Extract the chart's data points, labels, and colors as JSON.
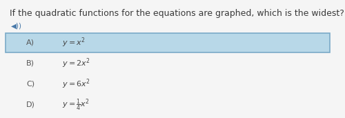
{
  "title": "If the quadratic functions for the equations are graphed, which is the widest?",
  "title_fontsize": 9.0,
  "title_color": "#3a3a3a",
  "speaker_color": "#4a7aaa",
  "options": [
    {
      "label": "A)",
      "eq_latex": "$y = x^2$",
      "selected": true
    },
    {
      "label": "B)",
      "eq_latex": "$y = 2x^2$",
      "selected": false
    },
    {
      "label": "C)",
      "eq_latex": "$y = 6x^2$",
      "selected": false
    },
    {
      "label": "D)",
      "eq_latex": "$y = \\frac{1}{4}x^2$",
      "selected": false
    }
  ],
  "selected_bg": "#b8d8e8",
  "selected_border": "#7aaac8",
  "bg_color": "#f5f5f5",
  "text_color": "#444444",
  "label_color": "#555555",
  "fig_width": 5.0,
  "fig_height": 1.71,
  "dpi": 100
}
